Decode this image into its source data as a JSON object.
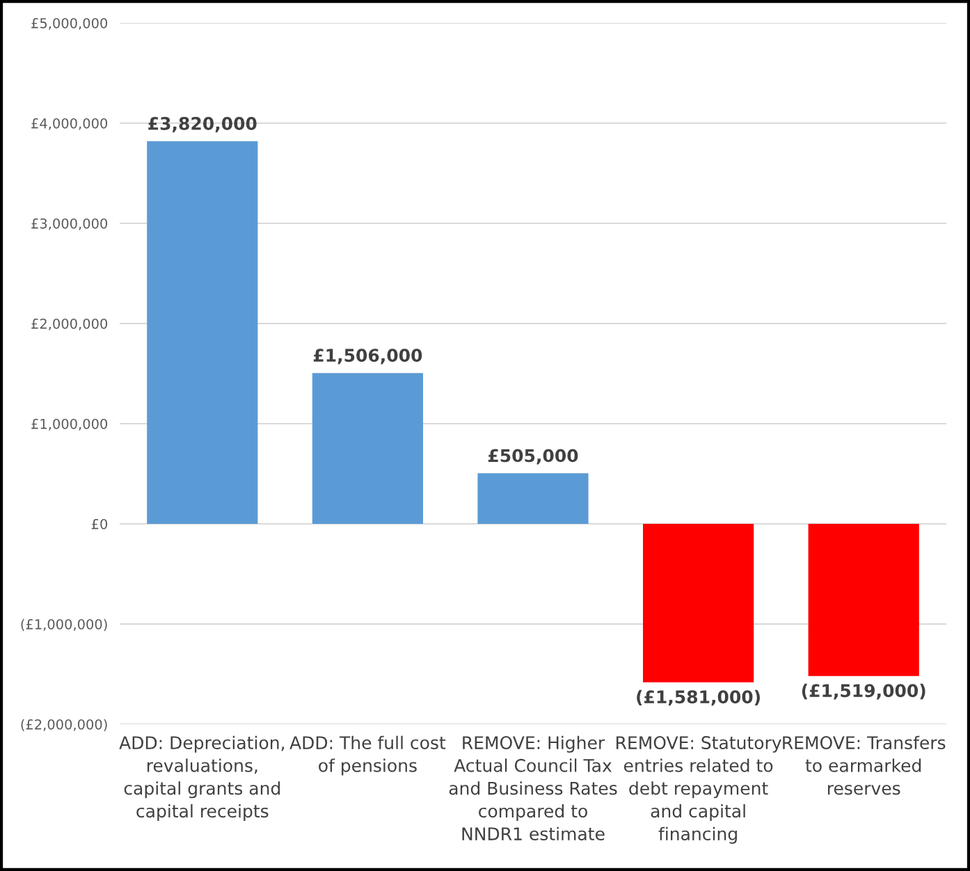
{
  "chart_data": {
    "type": "bar",
    "categories": [
      "ADD: Depreciation,\nrevaluations,\ncapital grants and\ncapital receipts",
      "ADD: The full cost\nof pensions",
      "REMOVE: Higher\nActual Council Tax\nand Business Rates\ncompared to\nNNDR1 estimate",
      "REMOVE: Statutory\nentries related to\ndebt repayment\nand capital\nfinancing",
      "REMOVE: Transfers\nto earmarked\nreserves"
    ],
    "values": [
      3820000,
      1506000,
      505000,
      -1581000,
      -1519000
    ],
    "colors": [
      "#5b9bd5",
      "#5b9bd5",
      "#5b9bd5",
      "#ff0000",
      "#ff0000"
    ],
    "value_labels": [
      "£3,820,000",
      "£1,506,000",
      "£505,000",
      "(£1,581,000)",
      "(£1,519,000)"
    ],
    "ylim": [
      -2000000,
      5000000
    ],
    "yticks": [
      {
        "value": -2000000,
        "label": "(£2,000,000)"
      },
      {
        "value": -1000000,
        "label": "(£1,000,000)"
      },
      {
        "value": 0,
        "label": "£0"
      },
      {
        "value": 1000000,
        "label": "£1,000,000"
      },
      {
        "value": 2000000,
        "label": "£2,000,000"
      },
      {
        "value": 3000000,
        "label": "£3,000,000"
      },
      {
        "value": 4000000,
        "label": "£4,000,000"
      },
      {
        "value": 5000000,
        "label": "£5,000,000"
      }
    ],
    "grid": "y",
    "legend": false
  }
}
